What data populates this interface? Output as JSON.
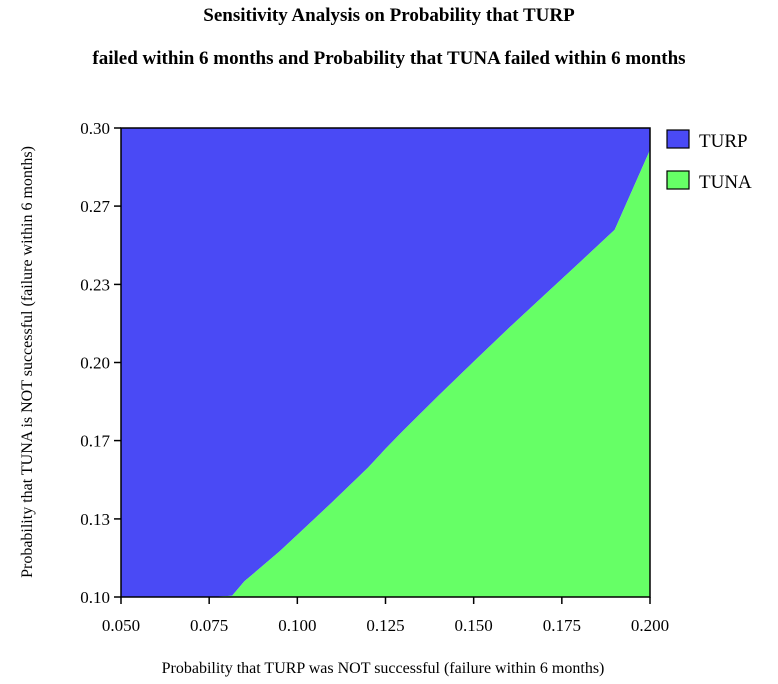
{
  "chart_data": {
    "type": "area",
    "title": "Sensitivity Analysis on Probability that TURP",
    "subtitle": "failed within 6 months and Probability that TUNA failed within 6 months",
    "xlabel": "Probability that TURP was NOT successful (failure within 6 months)",
    "ylabel": "Probability that TUNA is NOT successful (failure within 6 months)",
    "xlim": [
      0.05,
      0.2
    ],
    "ylim": [
      0.1,
      0.3
    ],
    "x_ticks": [
      "0.050",
      "0.075",
      "0.100",
      "0.125",
      "0.150",
      "0.175",
      "0.200"
    ],
    "x_tick_values": [
      0.05,
      0.075,
      0.1,
      0.125,
      0.15,
      0.175,
      0.2
    ],
    "y_ticks": [
      "0.10",
      "0.13",
      "0.17",
      "0.20",
      "0.23",
      "0.27",
      "0.30"
    ],
    "y_tick_values": [
      0.1,
      0.1333,
      0.1667,
      0.2,
      0.2333,
      0.2667,
      0.3
    ],
    "grid": false,
    "legend_position": "top-right",
    "series": [
      {
        "name": "TURP",
        "color": "#4a4af5",
        "region": "above boundary"
      },
      {
        "name": "TUNA",
        "color": "#66ff66",
        "region": "below boundary"
      }
    ],
    "boundary": {
      "x": [
        0.05,
        0.065,
        0.075,
        0.0815,
        0.085,
        0.09,
        0.095,
        0.1,
        0.11,
        0.12,
        0.125,
        0.13,
        0.14,
        0.15,
        0.16,
        0.17,
        0.175,
        0.18,
        0.19,
        0.2
      ],
      "y": [
        0.1,
        0.1,
        0.1,
        0.1005,
        0.1067,
        0.1131,
        0.1195,
        0.1265,
        0.1406,
        0.1551,
        0.1632,
        0.1709,
        0.1858,
        0.2004,
        0.2147,
        0.2287,
        0.2356,
        0.2426,
        0.2566,
        0.2906
      ]
    }
  }
}
